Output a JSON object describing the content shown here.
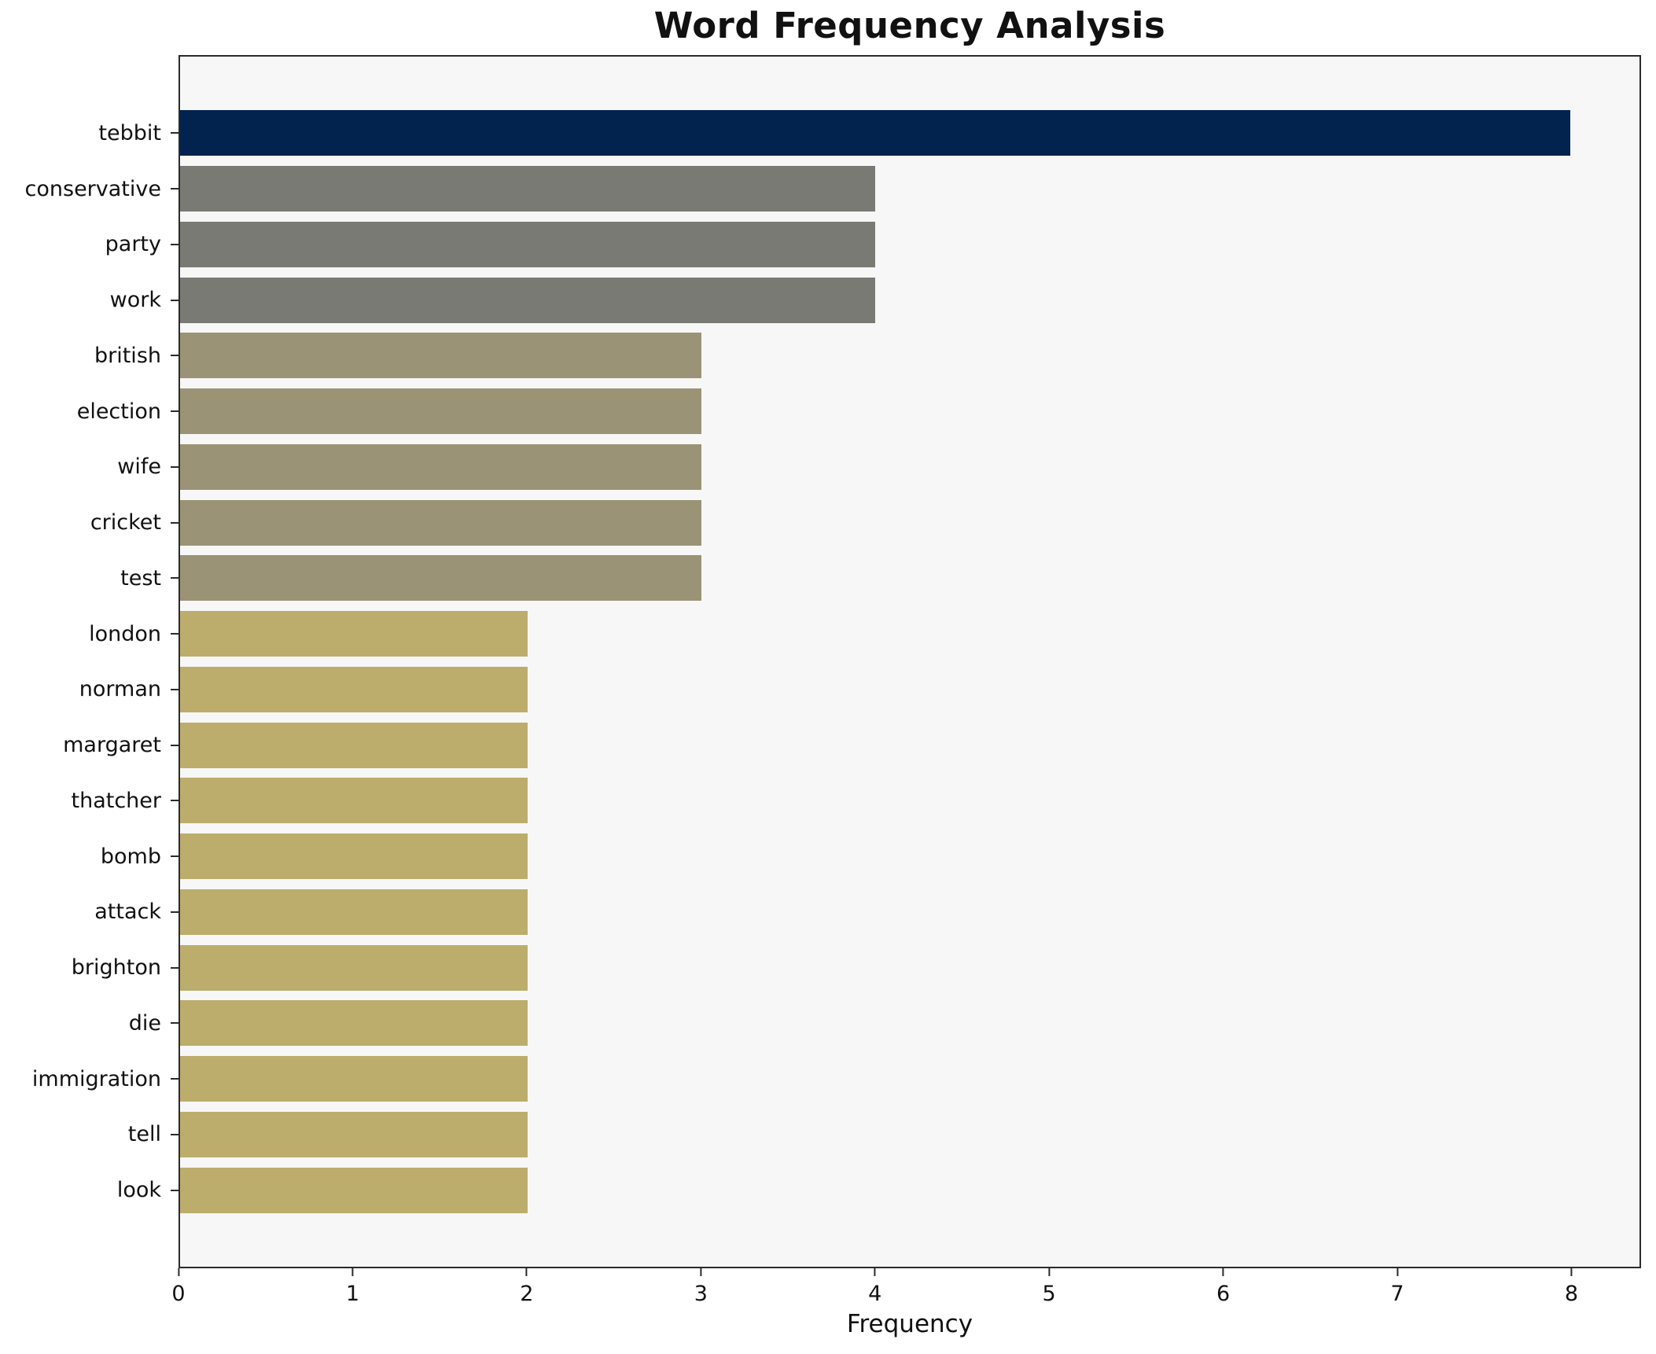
{
  "chart_data": {
    "type": "bar",
    "orientation": "horizontal",
    "title": "Word Frequency Analysis",
    "xlabel": "Frequency",
    "ylabel": "",
    "categories": [
      "tebbit",
      "conservative",
      "party",
      "work",
      "british",
      "election",
      "wife",
      "cricket",
      "test",
      "london",
      "norman",
      "margaret",
      "thatcher",
      "bomb",
      "attack",
      "brighton",
      "die",
      "immigration",
      "tell",
      "look"
    ],
    "values": [
      8,
      4,
      4,
      4,
      3,
      3,
      3,
      3,
      3,
      2,
      2,
      2,
      2,
      2,
      2,
      2,
      2,
      2,
      2,
      2
    ],
    "bar_colors": [
      "#02234E",
      "#7A7A75",
      "#7A7A75",
      "#7A7A75",
      "#9A9376",
      "#9A9376",
      "#9A9376",
      "#9A9376",
      "#9A9376",
      "#BCAD6D",
      "#BCAD6D",
      "#BCAD6D",
      "#BCAD6D",
      "#BCAD6D",
      "#BCAD6D",
      "#BCAD6D",
      "#BCAD6D",
      "#BCAD6D",
      "#BCAD6D",
      "#BCAD6D"
    ],
    "xlim": [
      0,
      8.4
    ],
    "xticks": [
      0,
      1,
      2,
      3,
      4,
      5,
      6,
      7,
      8
    ],
    "grid": false,
    "legend_position": "none",
    "plot_background": "#F7F7F7",
    "axis_color": "#2B2B2B",
    "text_color": "#111111"
  }
}
